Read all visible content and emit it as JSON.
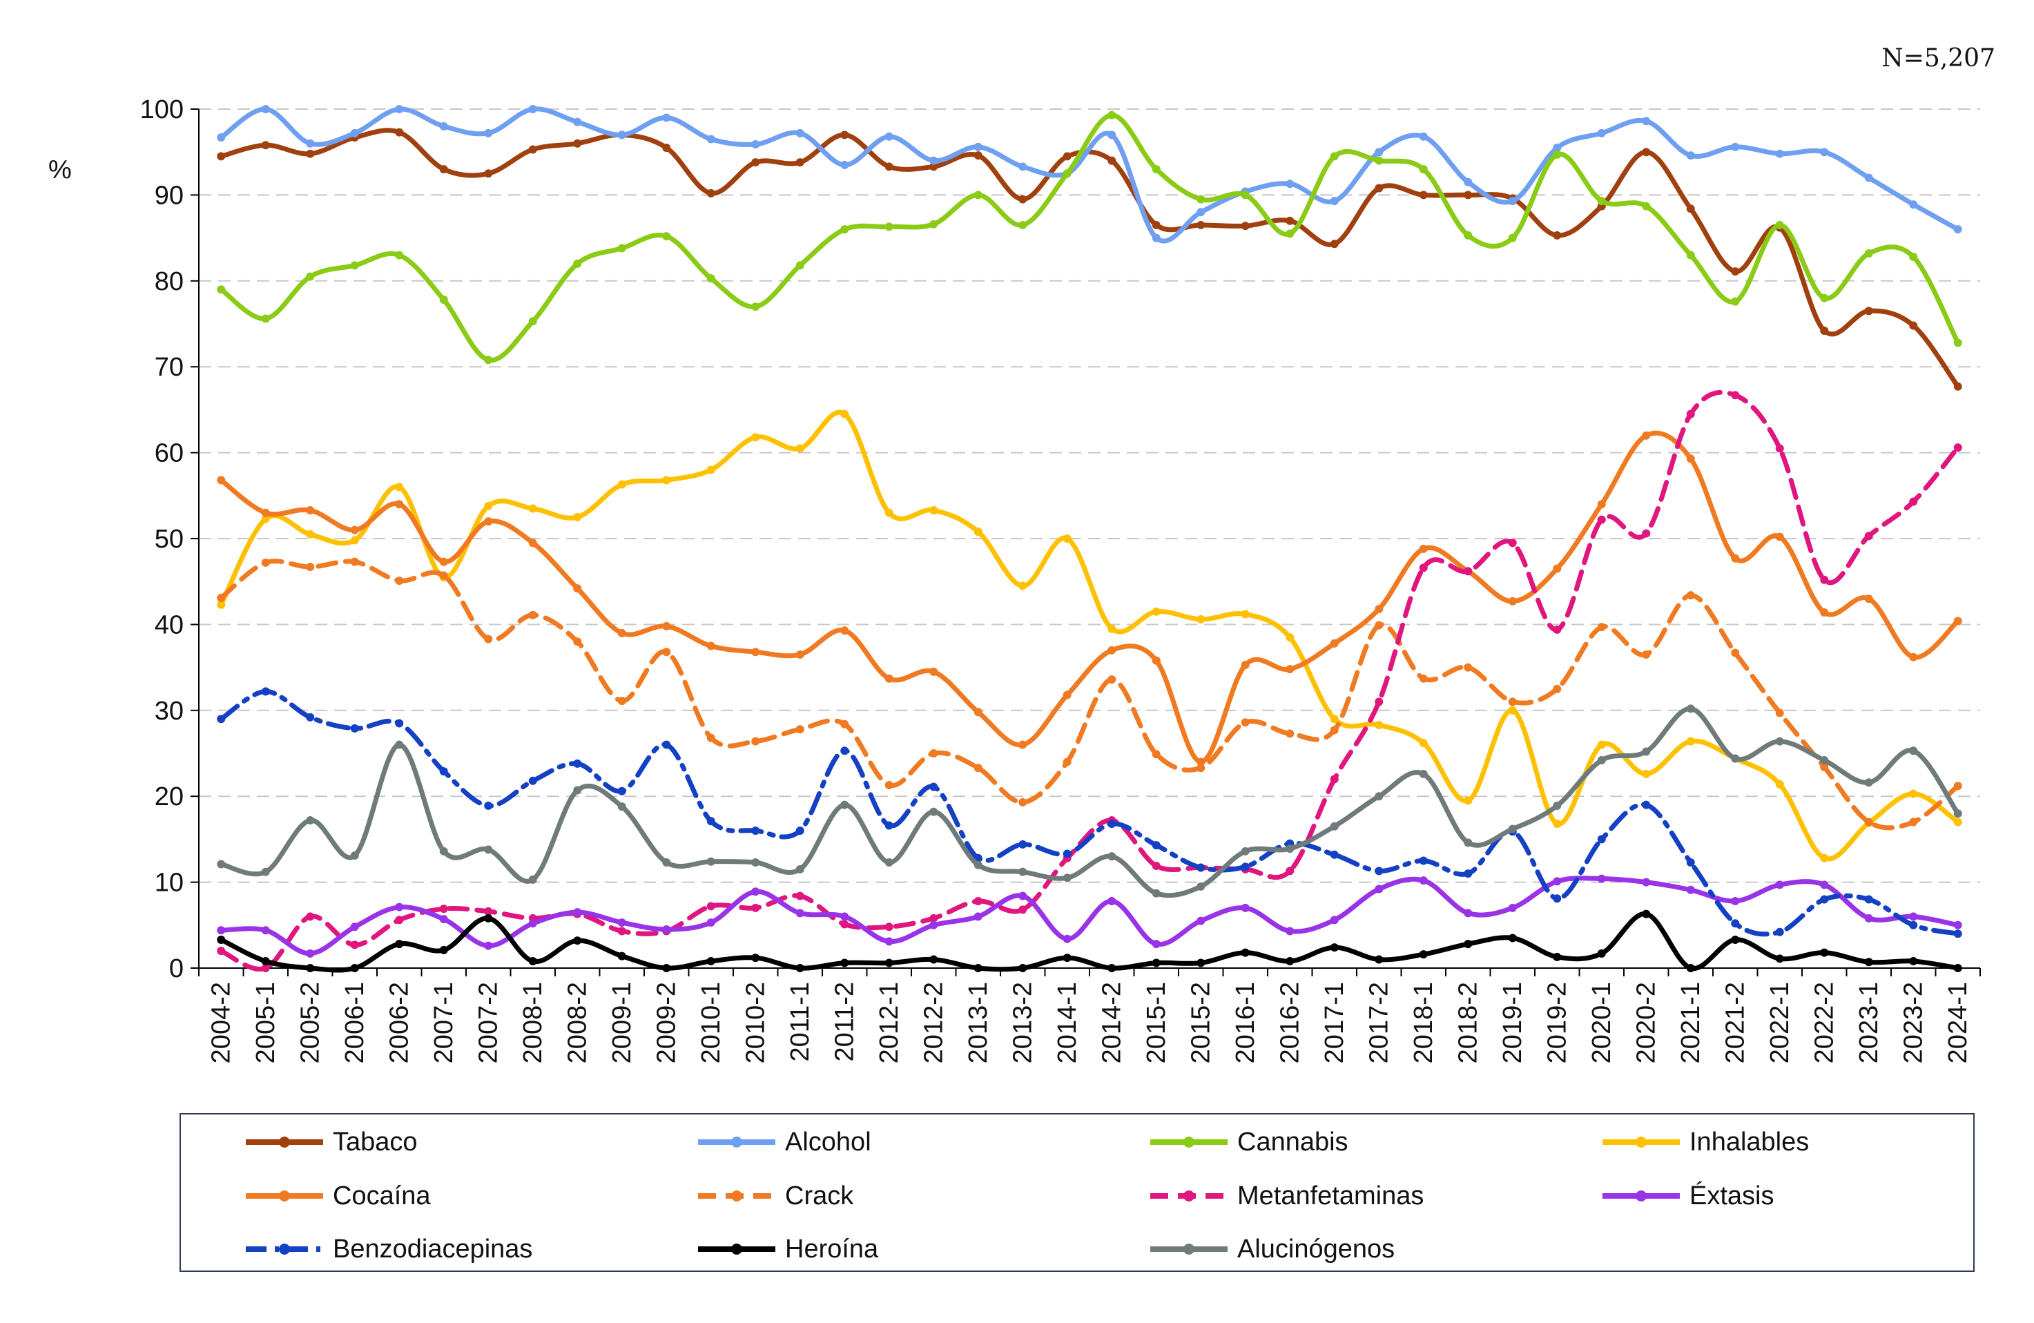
{
  "chart_data": {
    "type": "line",
    "title": "",
    "note": "N=5,207",
    "xlabel": "",
    "ylabel": "%",
    "ylim": [
      0,
      100
    ],
    "yticks": [
      0,
      10,
      20,
      30,
      40,
      50,
      60,
      70,
      80,
      90,
      100
    ],
    "grid": "horizontal dashed",
    "legend": "bottom",
    "x": [
      "2004-2",
      "2005-1",
      "2005-2",
      "2006-1",
      "2006-2",
      "2007-1",
      "2007-2",
      "2008-1",
      "2008-2",
      "2009-1",
      "2009-2",
      "2010-1",
      "2010-2",
      "2011-1",
      "2011-2",
      "2012-1",
      "2012-2",
      "2013-1",
      "2013-2",
      "2014-1",
      "2014-2",
      "2015-1",
      "2015-2",
      "2016-1",
      "2016-2",
      "2017-1",
      "2017-2",
      "2018-1",
      "2018-2",
      "2019-1",
      "2019-2",
      "2020-1",
      "2020-2",
      "2021-1",
      "2021-2",
      "2022-1",
      "2022-2",
      "2023-1",
      "2023-2",
      "2024-1"
    ],
    "series": [
      {
        "name": "Tabaco",
        "color": "#a0400e",
        "dash": "solid",
        "values": [
          94.5,
          95.8,
          94.8,
          96.7,
          97.3,
          93,
          92.5,
          95.3,
          96,
          97,
          95.5,
          90.2,
          93.8,
          93.8,
          97,
          93.3,
          93.3,
          94.6,
          89.5,
          94.5,
          94,
          86.5,
          86.5,
          86.4,
          87,
          84.3,
          90.8,
          90,
          90,
          89.6,
          85.3,
          88.7,
          95,
          88.4,
          81.1,
          86.2,
          74.2,
          76.5,
          74.8,
          67.7
        ]
      },
      {
        "name": "Alcohol",
        "color": "#6f9ff0",
        "dash": "solid",
        "values": [
          96.7,
          100,
          96,
          97.2,
          100,
          98,
          97.2,
          100,
          98.5,
          97,
          99,
          96.5,
          95.9,
          97.2,
          93.5,
          96.8,
          94,
          95.6,
          93.3,
          92.5,
          97,
          85,
          88,
          90.4,
          91.3,
          89.3,
          95,
          96.8,
          91.5,
          89.3,
          95.5,
          97.2,
          98.6,
          94.6,
          95.6,
          94.8,
          95,
          92,
          88.9,
          86
        ]
      },
      {
        "name": "Cannabis",
        "color": "#8acb16",
        "dash": "solid",
        "values": [
          79,
          75.6,
          80.5,
          81.8,
          83,
          77.8,
          70.8,
          75.3,
          82,
          83.8,
          85.2,
          80.3,
          77,
          81.8,
          86,
          86.3,
          86.6,
          90,
          86.5,
          92.5,
          99.3,
          93,
          89.5,
          90,
          85.5,
          94.5,
          94,
          93,
          85.3,
          85,
          94.7,
          89.3,
          88.7,
          83,
          77.6,
          86.5,
          78,
          83.2,
          82.8,
          72.8
        ]
      },
      {
        "name": "Inhalables",
        "color": "#ffc000",
        "dash": "solid",
        "values": [
          42.3,
          52.3,
          50.5,
          49.8,
          56,
          45.5,
          53.8,
          53.5,
          52.5,
          56.3,
          56.8,
          58,
          61.8,
          60.5,
          64.5,
          53,
          53.3,
          50.8,
          44.5,
          50,
          39.5,
          41.5,
          40.6,
          41.2,
          38.5,
          29,
          28.3,
          26.2,
          19.5,
          30,
          16.8,
          26,
          22.6,
          26.4,
          24.4,
          21.4,
          12.8,
          16.9,
          20.3,
          17
        ]
      },
      {
        "name": "Cocaína",
        "color": "#f07a22",
        "dash": "solid",
        "values": [
          56.8,
          53,
          53.3,
          51,
          54,
          47.3,
          52,
          49.5,
          44.2,
          39,
          39.8,
          37.5,
          36.8,
          36.5,
          39.3,
          33.7,
          34.5,
          29.8,
          26,
          31.8,
          37,
          35.8,
          24,
          35.3,
          34.8,
          37.8,
          41.8,
          48.8,
          46.2,
          42.7,
          46.5,
          54,
          62,
          59.3,
          47.7,
          50.2,
          41.4,
          43,
          36.2,
          40.4
        ]
      },
      {
        "name": "Crack",
        "color": "#f07a22",
        "dash": "dashed",
        "values": [
          43.1,
          47.2,
          46.7,
          47.3,
          45.1,
          45.7,
          38.3,
          41.1,
          38,
          31.1,
          36.8,
          26.8,
          26.4,
          27.8,
          28.4,
          21.3,
          25,
          23.3,
          19.3,
          24,
          33.6,
          24.9,
          23.3,
          28.6,
          27.3,
          27.7,
          39.9,
          33.7,
          35,
          31,
          32.5,
          39.7,
          36.5,
          43.4,
          36.7,
          29.7,
          23.4,
          17,
          17,
          21.2
        ]
      },
      {
        "name": "Metanfetaminas",
        "color": "#e0157e",
        "dash": "dashed",
        "values": [
          2,
          0,
          6,
          2.7,
          5.6,
          6.9,
          6.6,
          5.8,
          6.3,
          4.3,
          4.3,
          7.2,
          7,
          8.4,
          5.1,
          4.8,
          5.8,
          7.8,
          6.8,
          12.8,
          17.2,
          11.9,
          11.7,
          11.5,
          11.3,
          22,
          31,
          46.6,
          46.2,
          49.5,
          39.4,
          52.2,
          50.6,
          64.5,
          66.7,
          60.5,
          45.2,
          50.3,
          54.3,
          60.6
        ]
      },
      {
        "name": "Éxtasis",
        "color": "#9933e8",
        "dash": "solid",
        "values": [
          4.4,
          4.4,
          1.7,
          4.8,
          7.1,
          5.7,
          2.6,
          5.2,
          6.5,
          5.3,
          4.5,
          5.3,
          8.9,
          6.4,
          6,
          3.1,
          5,
          6,
          8.4,
          3.4,
          7.8,
          2.8,
          5.5,
          7,
          4.3,
          5.6,
          9.2,
          10.2,
          6.4,
          7,
          10.1,
          10.4,
          10,
          9.1,
          7.8,
          9.7,
          9.7,
          5.8,
          6,
          5
        ]
      },
      {
        "name": "Benzodiacepinas",
        "color": "#1440c4",
        "dash": "dashdot",
        "values": [
          29,
          32.2,
          29.2,
          27.9,
          28.5,
          22.9,
          18.9,
          21.8,
          23.8,
          20.6,
          26,
          17.1,
          16,
          16,
          25.3,
          16.6,
          21.1,
          12.8,
          14.4,
          13.3,
          16.8,
          14.3,
          11.7,
          11.8,
          14.5,
          13.2,
          11.3,
          12.5,
          11,
          15.9,
          8.1,
          15,
          19,
          12.3,
          5.2,
          4.2,
          8,
          8,
          5,
          4
        ]
      },
      {
        "name": "Heroína",
        "color": "#000000",
        "dash": "solid",
        "values": [
          3.3,
          0.8,
          0,
          0,
          2.8,
          2.1,
          5.8,
          0.8,
          3.2,
          1.4,
          0,
          0.8,
          1.2,
          0,
          0.6,
          0.6,
          1,
          0,
          0,
          1.2,
          0,
          0.6,
          0.6,
          1.8,
          0.8,
          2.4,
          1,
          1.6,
          2.8,
          3.5,
          1.3,
          1.7,
          6.3,
          0,
          3.3,
          1.1,
          1.8,
          0.7,
          0.8,
          0
        ]
      },
      {
        "name": "Alucinógenos",
        "color": "#6f7b7b",
        "dash": "solid",
        "values": [
          12.1,
          11.2,
          17.2,
          13.1,
          26,
          13.6,
          13.8,
          10.3,
          20.7,
          18.8,
          12.3,
          12.4,
          12.3,
          11.5,
          19,
          12.3,
          18.2,
          12,
          11.2,
          10.5,
          13,
          8.7,
          9.5,
          13.6,
          13.9,
          16.5,
          20,
          22.6,
          14.6,
          16.2,
          18.9,
          24.2,
          25.2,
          30.2,
          24.4,
          26.4,
          24.2,
          21.6,
          25.3,
          18
        ]
      }
    ]
  }
}
